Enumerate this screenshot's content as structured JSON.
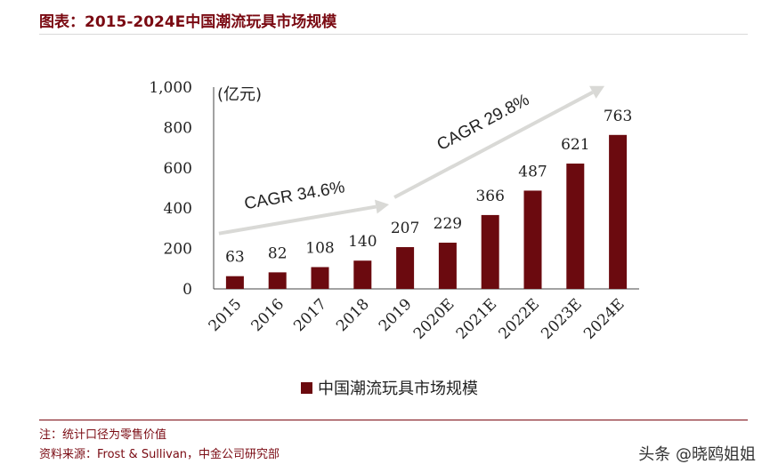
{
  "header": {
    "title": "图表：2015-2024E中国潮流玩具市场规模"
  },
  "footer": {
    "note": "注：统计口径为零售价值",
    "source": "资料来源：Frost & Sullivan，中金公司研究部",
    "watermark": "头条 @晓鸥姐姐"
  },
  "chart_data": {
    "type": "bar",
    "categories": [
      "2015",
      "2016",
      "2017",
      "2018",
      "2019",
      "2020E",
      "2021E",
      "2022E",
      "2023E",
      "2024E"
    ],
    "series": [
      {
        "name": "中国潮流玩具市场规模",
        "values": [
          63,
          82,
          108,
          140,
          207,
          229,
          366,
          487,
          621,
          763
        ],
        "color": "#6b0a0f"
      }
    ],
    "y_ticks": [
      "0",
      "200",
      "400",
      "600",
      "800",
      "1,000"
    ],
    "y_tick_values": [
      0,
      200,
      400,
      600,
      800,
      1000
    ],
    "ylim": [
      0,
      1000
    ],
    "unit_label": "(亿元)",
    "annotations": [
      {
        "text": "CAGR 34.6%",
        "from": "2015",
        "to": "2019"
      },
      {
        "text": "CAGR 29.8%",
        "from": "2019",
        "to": "2024E"
      }
    ],
    "arrow_color": "#d9d9d6",
    "grid": false,
    "legend_position": "bottom"
  }
}
